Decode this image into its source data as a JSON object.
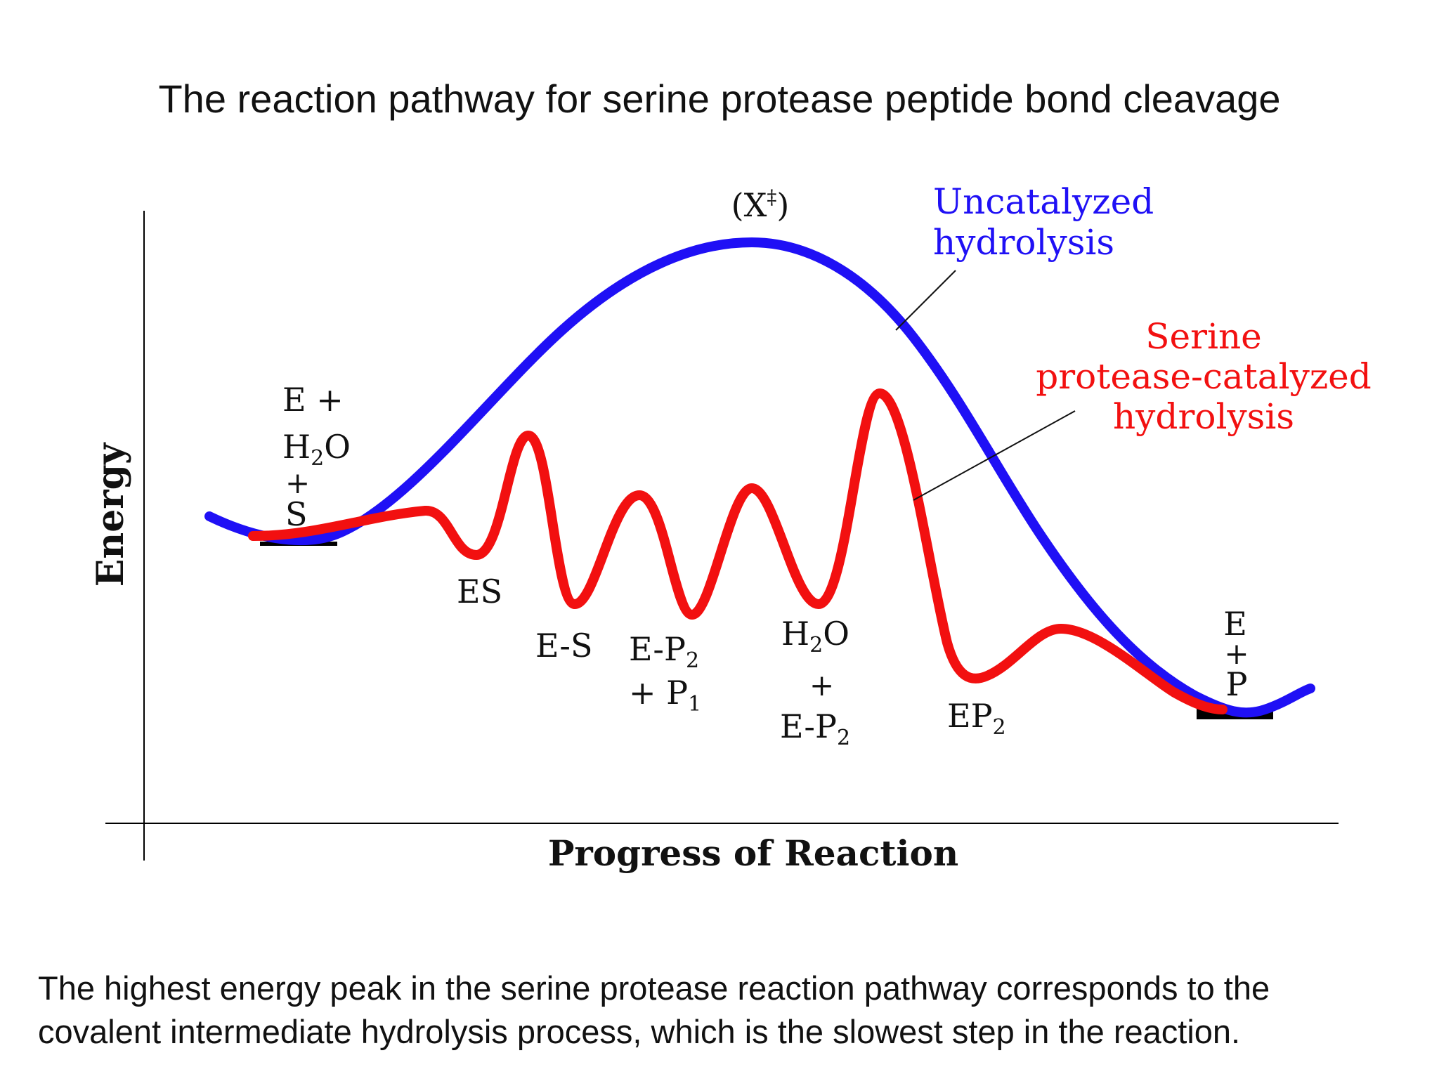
{
  "slide": {
    "title": "The reaction pathway for serine protease peptide bond cleavage",
    "footnote_line1": "The highest energy peak in the serine protease reaction pathway corresponds to the",
    "footnote_line2": "covalent intermediate hydrolysis process, which is the slowest step in the reaction."
  },
  "diagram": {
    "y_axis_label": "Energy",
    "x_axis_label": "Progress of Reaction",
    "transition_state": {
      "open": "(X",
      "dagger": "‡",
      "close": ")"
    },
    "uncatalyzed_label_line1": "Uncatalyzed",
    "uncatalyzed_label_line2": "hydrolysis",
    "catalyzed_label_line1": "Serine",
    "catalyzed_label_line2": "protease-catalyzed",
    "catalyzed_label_line3": "hydrolysis",
    "colors": {
      "uncatalyzed": "#1f10f5",
      "catalyzed": "#f21010",
      "axes": "#000000"
    },
    "states": {
      "reactants": {
        "line1": "E +",
        "h2o_h": "H",
        "h2o_sub": "2",
        "h2o_o": "O",
        "plus": "+",
        "s": "S"
      },
      "es": "ES",
      "e_s": "E-S",
      "ep2_p1": {
        "e_p": "E-P",
        "sub2": "2",
        "plus_p": "+ P",
        "sub1": "1"
      },
      "h2o_ep2": {
        "h": "H",
        "sub2": "2",
        "o": "O",
        "plus": "+",
        "e_p": "E-P",
        "sub2b": "2"
      },
      "ep2": {
        "ep": "EP",
        "sub": "2"
      },
      "products": {
        "e": "E",
        "plus": "+",
        "p": "P"
      }
    }
  }
}
